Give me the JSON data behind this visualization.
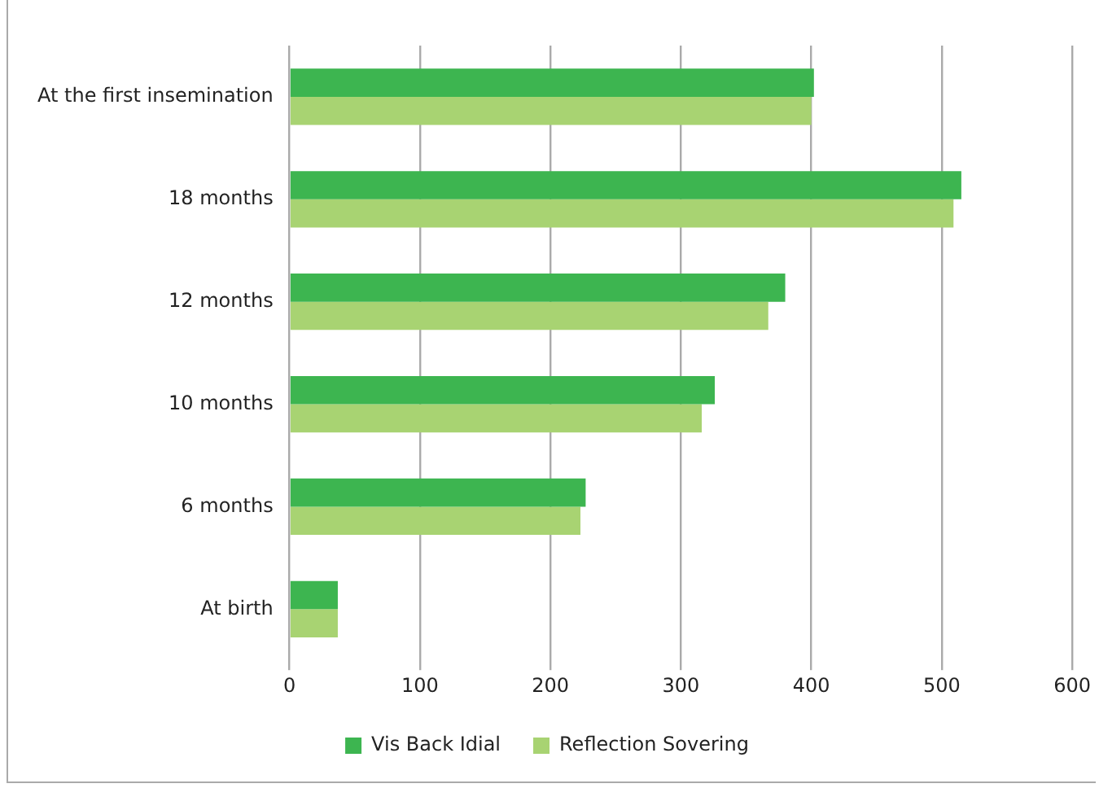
{
  "chart_data": {
    "type": "bar",
    "orientation": "horizontal",
    "categories": [
      "At the first insemination",
      "18 months",
      "12 months",
      "10 months",
      "6 months",
      "At birth"
    ],
    "series": [
      {
        "name": "Vis Back Idial",
        "color": "#3db550",
        "values": [
          402,
          515,
          380,
          326,
          227,
          37
        ]
      },
      {
        "name": "Reflection Sovering",
        "color": "#a8d372",
        "values": [
          400,
          509,
          367,
          316,
          223,
          37
        ]
      }
    ],
    "xlim": [
      0,
      600
    ],
    "xticks": [
      0,
      100,
      200,
      300,
      400,
      500,
      600
    ],
    "grid": "x",
    "legend": "bottom"
  }
}
